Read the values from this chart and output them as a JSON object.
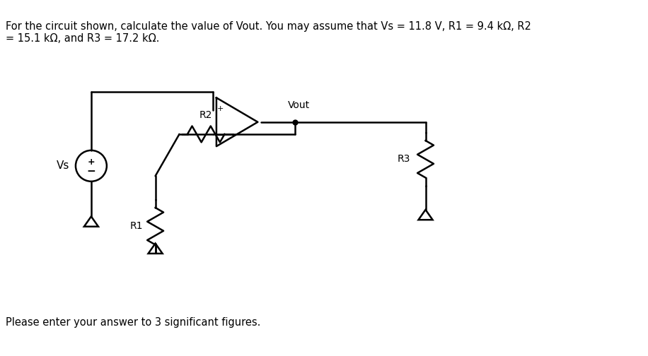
{
  "title_text": "For the circuit shown, calculate the value of Vout. You may assume that Vs = 11.8 V, R1 = 9.4 kΩ, R2\n= 15.1 kΩ, and R3 = 17.2 kΩ.",
  "footer_text": "Please enter your answer to 3 significant figures.",
  "bg_color": "#ffffff",
  "line_color": "#000000",
  "text_color": "#000000",
  "label_vs": "Vs",
  "label_r1": "R1",
  "label_r2": "R2",
  "label_r3": "R3",
  "label_vout": "Vout"
}
